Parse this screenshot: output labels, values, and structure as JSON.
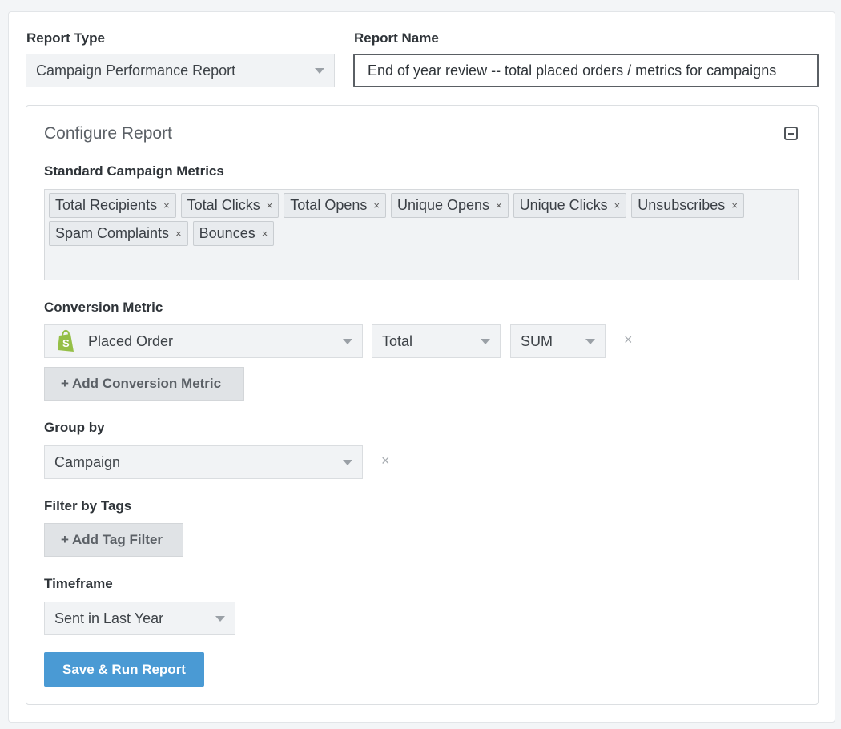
{
  "report_type": {
    "label": "Report Type",
    "value": "Campaign Performance Report"
  },
  "report_name": {
    "label": "Report Name",
    "value": "End of year review -- total placed orders / metrics for campaigns"
  },
  "configure": {
    "title": "Configure Report",
    "standard_metrics": {
      "label": "Standard Campaign Metrics",
      "tags": [
        "Total Recipients",
        "Total Clicks",
        "Total Opens",
        "Unique Opens",
        "Unique Clicks",
        "Unsubscribes",
        "Spam Complaints",
        "Bounces"
      ],
      "remove_glyph": "×"
    },
    "conversion": {
      "label": "Conversion Metric",
      "metric": "Placed Order",
      "metric_icon": "shopify-icon",
      "aggregate": "Total",
      "function": "SUM",
      "remove_glyph": "×",
      "add_label": "+ Add Conversion Metric"
    },
    "group_by": {
      "label": "Group by",
      "value": "Campaign",
      "remove_glyph": "×"
    },
    "filter_tags": {
      "label": "Filter by Tags",
      "add_label": "+ Add Tag Filter"
    },
    "timeframe": {
      "label": "Timeframe",
      "value": "Sent in Last Year"
    },
    "save_label": "Save & Run Report"
  },
  "colors": {
    "primary": "#4a9ad4",
    "shopify": "#95bf47"
  }
}
